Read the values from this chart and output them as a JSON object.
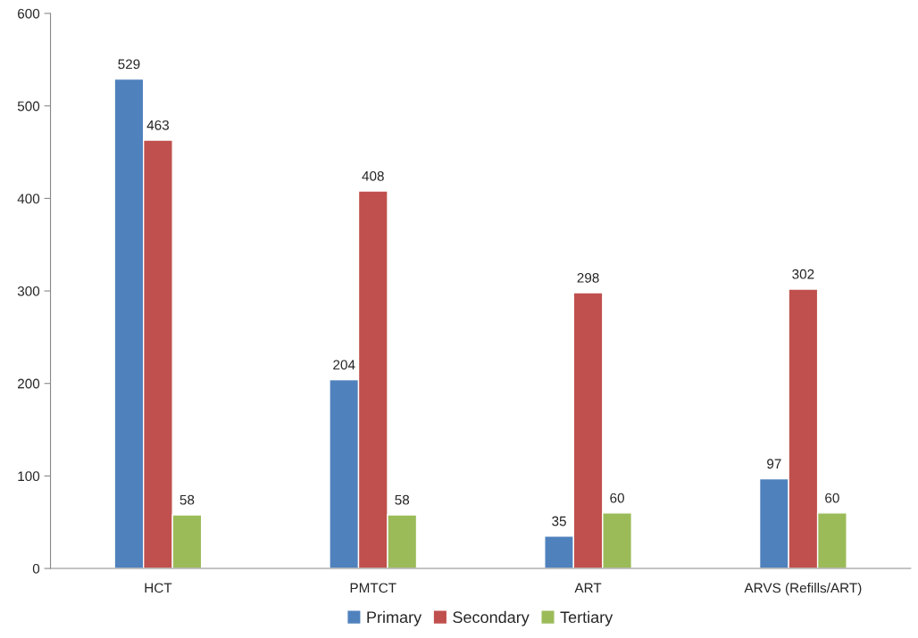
{
  "chart_data": {
    "type": "bar",
    "categories": [
      "HCT",
      "PMTCT",
      "ART",
      "ARVS (Refills/ART)"
    ],
    "series": [
      {
        "name": "Primary",
        "color": "#4f81bd",
        "values": [
          529,
          204,
          35,
          97
        ]
      },
      {
        "name": "Secondary",
        "color": "#c0504d",
        "values": [
          463,
          408,
          298,
          302
        ]
      },
      {
        "name": "Tertiary",
        "color": "#9bbb59",
        "values": [
          58,
          58,
          60,
          60
        ]
      }
    ],
    "ylim": [
      0,
      600
    ],
    "yticks": [
      0,
      100,
      200,
      300,
      400,
      500,
      600
    ],
    "data_labels": true,
    "grid": false,
    "legend": "bottom"
  }
}
